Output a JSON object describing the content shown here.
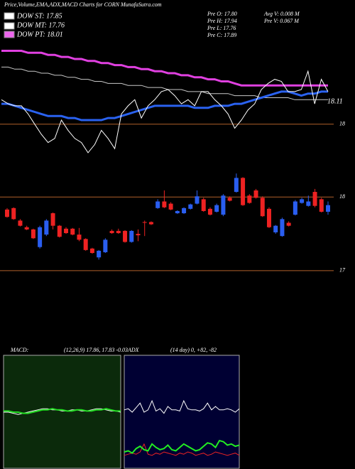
{
  "header": {
    "title": "Price,Volume,EMA,ADX,MACD Charts for CORN  MunafaSutra.com",
    "legend": [
      "DOW ST: 17.85",
      "DOW MT: 17.76",
      "DOW PT: 18.01"
    ],
    "info": [
      "Pre  O: 17.80",
      "Pre  H: 17.94",
      "Pre  L: 17.76",
      "Pre  C: 17.89",
      "Avg V: 0.008 M",
      "Pre  V: 0.067 M"
    ]
  },
  "chart_data": [
    {
      "type": "line",
      "ylim": [
        17.79,
        18.4
      ],
      "yticks": [
        18
      ],
      "last_value": 18.11,
      "background": "#000000",
      "tick_color": "#b0602a",
      "series": [
        {
          "color": "#c8c8c8",
          "width": 1,
          "values": [
            18.28,
            18.28,
            18.27,
            18.27,
            18.26,
            18.26,
            18.25,
            18.25,
            18.24,
            18.24,
            18.23,
            18.23,
            18.22,
            18.22,
            18.21,
            18.21,
            18.2,
            18.2,
            18.2,
            18.19,
            18.19,
            18.19,
            18.18,
            18.18,
            18.18,
            18.17,
            18.17,
            18.17,
            18.16,
            18.16,
            18.16,
            18.15,
            18.15,
            18.15,
            18.15,
            18.14,
            18.14,
            18.14,
            18.14,
            18.13,
            18.13,
            18.13,
            18.13,
            18.13,
            18.12,
            18.12,
            18.12,
            18.12,
            18.12,
            18.12
          ]
        },
        {
          "color": "#e040e0",
          "width": 3,
          "values": [
            18.36,
            18.36,
            18.36,
            18.36,
            18.35,
            18.35,
            18.35,
            18.34,
            18.34,
            18.33,
            18.33,
            18.32,
            18.32,
            18.31,
            18.31,
            18.3,
            18.3,
            18.29,
            18.29,
            18.28,
            18.28,
            18.27,
            18.27,
            18.26,
            18.26,
            18.25,
            18.25,
            18.24,
            18.24,
            18.23,
            18.23,
            18.22,
            18.22,
            18.21,
            18.21,
            18.2,
            18.19,
            18.19,
            18.19,
            18.19,
            18.19,
            18.19,
            18.19,
            18.19,
            18.19,
            18.19,
            18.19,
            18.19,
            18.19,
            18.19
          ]
        },
        {
          "color": "#2a62f0",
          "width": 3,
          "values": [
            18.1,
            18.1,
            18.09,
            18.08,
            18.07,
            18.06,
            18.05,
            18.04,
            18.04,
            18.04,
            18.03,
            18.03,
            18.02,
            18.02,
            18.02,
            18.02,
            18.03,
            18.03,
            18.04,
            18.05,
            18.06,
            18.07,
            18.08,
            18.09,
            18.09,
            18.09,
            18.09,
            18.09,
            18.09,
            18.08,
            18.08,
            18.08,
            18.09,
            18.09,
            18.09,
            18.1,
            18.1,
            18.11,
            18.12,
            18.13,
            18.14,
            18.15,
            18.16,
            18.16,
            18.15,
            18.14,
            18.15,
            18.15,
            18.16,
            18.16
          ]
        },
        {
          "color": "#ffffff",
          "width": 1,
          "values": [
            18.12,
            18.1,
            18.09,
            18.09,
            18.05,
            18.0,
            17.95,
            17.91,
            17.93,
            18.02,
            17.97,
            17.93,
            17.91,
            17.86,
            17.9,
            17.97,
            17.93,
            17.88,
            18.05,
            18.09,
            18.12,
            18.03,
            18.09,
            18.12,
            18.16,
            18.17,
            18.14,
            18.1,
            18.12,
            18.09,
            18.16,
            18.16,
            18.12,
            18.09,
            18.05,
            17.98,
            18.02,
            18.07,
            18.1,
            18.17,
            18.2,
            18.22,
            18.21,
            18.16,
            18.16,
            18.17,
            18.26,
            18.1,
            18.22,
            18.16
          ]
        }
      ]
    },
    {
      "type": "candlestick",
      "ylim": [
        16.96,
        18.36
      ],
      "yticks": [
        17,
        18
      ],
      "background": "#000000",
      "tick_color": "#b0602a",
      "up_color": "#2a5ef0",
      "down_color": "#ee2222",
      "open": [
        17.83,
        17.85,
        17.68,
        17.59,
        17.56,
        17.32,
        17.49,
        17.78,
        17.61,
        17.57,
        17.57,
        17.49,
        17.43,
        17.3,
        17.18,
        17.25,
        17.54,
        17.54,
        17.54,
        17.39,
        17.5,
        17.66,
        17.66,
        17.85,
        17.94,
        17.91,
        17.78,
        17.78,
        17.84,
        17.91,
        17.97,
        17.84,
        17.8,
        17.76,
        17.99,
        18.07,
        18.26,
        18.02,
        18.09,
        17.99,
        17.84,
        17.52,
        17.47,
        17.65,
        17.76,
        17.92,
        17.88,
        18.07,
        17.97,
        17.8
      ],
      "high": [
        17.85,
        17.86,
        17.7,
        17.61,
        17.57,
        17.61,
        17.7,
        17.79,
        17.62,
        17.59,
        17.58,
        17.58,
        17.44,
        17.31,
        17.28,
        17.44,
        17.56,
        17.57,
        17.55,
        17.55,
        17.56,
        17.68,
        17.67,
        17.97,
        18.09,
        17.93,
        17.82,
        17.86,
        17.91,
        18.09,
        17.99,
        17.86,
        17.91,
        18.04,
        18.01,
        18.32,
        18.27,
        18.04,
        18.11,
        18.01,
        17.86,
        17.62,
        17.72,
        17.67,
        17.96,
        17.99,
        18.02,
        18.11,
        17.99,
        17.94
      ],
      "low": [
        17.72,
        17.69,
        17.6,
        17.55,
        17.43,
        17.3,
        17.47,
        17.56,
        17.45,
        17.5,
        17.48,
        17.4,
        17.27,
        17.23,
        17.15,
        17.24,
        17.5,
        17.5,
        17.38,
        17.38,
        17.4,
        17.47,
        17.62,
        17.84,
        17.85,
        17.82,
        17.77,
        17.77,
        17.83,
        17.9,
        17.8,
        17.75,
        17.79,
        17.74,
        17.94,
        18.06,
        17.88,
        17.91,
        17.98,
        17.73,
        17.58,
        17.5,
        17.46,
        17.6,
        17.75,
        17.91,
        17.87,
        17.86,
        17.79,
        17.76
      ],
      "close": [
        17.73,
        17.7,
        17.61,
        17.56,
        17.44,
        17.59,
        17.68,
        17.61,
        17.46,
        17.51,
        17.49,
        17.42,
        17.28,
        17.24,
        17.27,
        17.42,
        17.51,
        17.51,
        17.39,
        17.54,
        17.48,
        17.65,
        17.63,
        17.94,
        17.86,
        17.83,
        17.81,
        17.85,
        17.9,
        18.01,
        17.81,
        17.76,
        17.89,
        18.02,
        17.95,
        18.26,
        17.89,
        17.92,
        17.99,
        17.74,
        17.59,
        17.61,
        17.7,
        17.61,
        17.94,
        17.97,
        17.94,
        17.88,
        17.8,
        17.89
      ]
    },
    {
      "type": "line",
      "title": "MACD:",
      "subtitle": "(12,26,9) 17.86, 17.83 -0.03",
      "ylim": [
        -0.5,
        0.5
      ],
      "background": "#0b2a0b",
      "series": [
        {
          "color": "#ffffff",
          "width": 1,
          "values": [
            0.0,
            0.0,
            -0.01,
            -0.02,
            -0.01,
            0.0,
            0.01,
            0.02,
            0.03,
            0.03,
            0.02,
            0.02,
            0.01,
            0.01,
            0.02,
            0.02,
            0.01,
            0.01,
            0.02,
            0.03,
            0.03,
            0.02,
            0.01,
            0.01,
            0.0
          ]
        },
        {
          "color": "#22dd22",
          "width": 2,
          "values": [
            0.01,
            0.01,
            0.0,
            0.0,
            -0.01,
            -0.01,
            0.0,
            0.01,
            0.02,
            0.02,
            0.03,
            0.02,
            0.02,
            0.01,
            0.01,
            0.02,
            0.02,
            0.01,
            0.01,
            0.02,
            0.02,
            0.03,
            0.02,
            0.01,
            0.01
          ]
        }
      ]
    },
    {
      "type": "line",
      "title": "ADX",
      "subtitle": "(14 day) 0, +82, -82",
      "ylim": [
        0,
        100
      ],
      "background": "#000033",
      "series": [
        {
          "color": "#ffffff",
          "width": 1,
          "values": [
            52,
            53,
            50,
            54,
            58,
            50,
            52,
            60,
            51,
            53,
            49,
            55,
            52,
            52,
            51,
            60,
            53,
            52,
            52,
            51,
            53,
            58,
            52,
            55,
            52,
            52,
            53,
            52,
            50,
            53
          ]
        },
        {
          "color": "#ee2222",
          "width": 1,
          "values": [
            12,
            13,
            14,
            13,
            15,
            22,
            13,
            12,
            14,
            13,
            15,
            14,
            13,
            12,
            14,
            13,
            15,
            14,
            12,
            13,
            14,
            12,
            13,
            15,
            14,
            13,
            12,
            13,
            14,
            12
          ]
        },
        {
          "color": "#22ee22",
          "width": 2,
          "values": [
            15,
            16,
            14,
            18,
            20,
            17,
            16,
            22,
            19,
            17,
            18,
            21,
            17,
            16,
            19,
            22,
            20,
            18,
            16,
            17,
            20,
            23,
            22,
            19,
            25,
            24,
            21,
            22,
            20,
            21
          ]
        }
      ]
    }
  ]
}
